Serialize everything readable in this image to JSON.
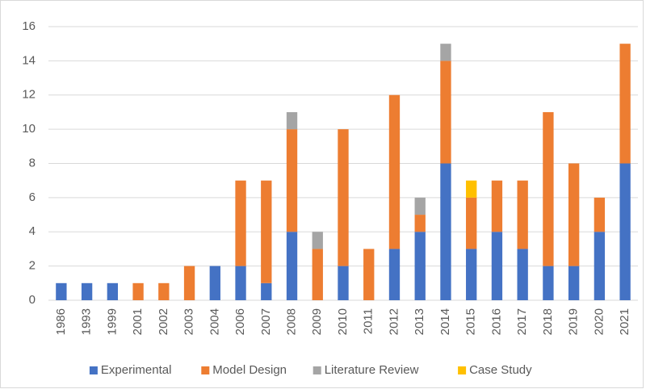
{
  "chart_data": {
    "type": "stacked_bar",
    "categories": [
      "1986",
      "1993",
      "1999",
      "2001",
      "2002",
      "2003",
      "2004",
      "2006",
      "2007",
      "2008",
      "2009",
      "2010",
      "2011",
      "2012",
      "2013",
      "2014",
      "2015",
      "2016",
      "2017",
      "2018",
      "2019",
      "2020",
      "2021"
    ],
    "series": [
      {
        "name": "Experimental",
        "color": "#4472c4",
        "values": [
          1,
          1,
          1,
          0,
          0,
          0,
          2,
          2,
          1,
          4,
          0,
          2,
          0,
          3,
          4,
          8,
          3,
          4,
          3,
          2,
          2,
          4,
          8
        ]
      },
      {
        "name": "Model Design",
        "color": "#ed7d31",
        "values": [
          0,
          0,
          0,
          1,
          1,
          2,
          0,
          5,
          6,
          6,
          3,
          8,
          3,
          9,
          1,
          6,
          3,
          3,
          4,
          9,
          6,
          2,
          7
        ]
      },
      {
        "name": "Literature Review",
        "color": "#a5a5a5",
        "values": [
          0,
          0,
          0,
          0,
          0,
          0,
          0,
          0,
          0,
          1,
          1,
          0,
          0,
          0,
          1,
          1,
          0,
          0,
          0,
          0,
          0,
          0,
          0
        ]
      },
      {
        "name": "Case Study",
        "color": "#ffc000",
        "values": [
          0,
          0,
          0,
          0,
          0,
          0,
          0,
          0,
          0,
          0,
          0,
          0,
          0,
          0,
          0,
          0,
          1,
          0,
          0,
          0,
          0,
          0,
          0
        ]
      }
    ],
    "ylim": [
      0,
      16
    ],
    "yticks": [
      0,
      2,
      4,
      6,
      8,
      10,
      12,
      14,
      16
    ],
    "grid": true,
    "legend": "bottom"
  }
}
